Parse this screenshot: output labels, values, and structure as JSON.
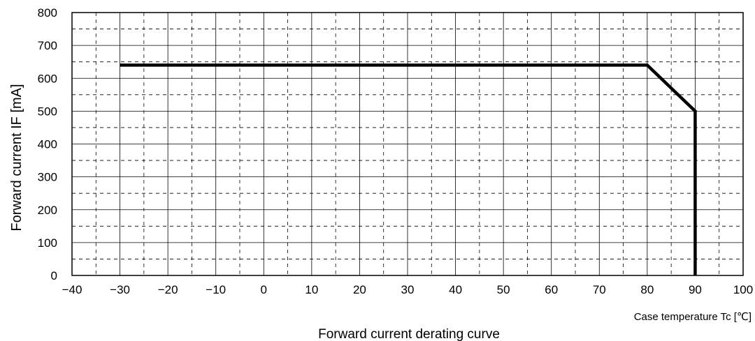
{
  "chart_data": {
    "type": "line",
    "title": "",
    "caption": "Forward current derating curve",
    "xlabel": "Case temperature  Tc [℃]",
    "ylabel": "Forward current  IF [mA]",
    "xlim": [
      -40,
      100
    ],
    "ylim": [
      0,
      800
    ],
    "x_ticks": [
      -40,
      -30,
      -20,
      -10,
      0,
      10,
      20,
      30,
      40,
      50,
      60,
      70,
      80,
      90,
      100
    ],
    "y_ticks": [
      0,
      100,
      200,
      300,
      400,
      500,
      600,
      700,
      800
    ],
    "x_tick_labels": [
      "−40",
      "−30",
      "−20",
      "−10",
      "0",
      "10",
      "20",
      "30",
      "40",
      "50",
      "60",
      "70",
      "80",
      "90",
      "100"
    ],
    "y_tick_labels": [
      "0",
      "100",
      "200",
      "300",
      "400",
      "500",
      "600",
      "700",
      "800"
    ],
    "grid": {
      "major": true,
      "minor_dashed": true,
      "x_minor_step": 5,
      "y_minor_step": 50
    },
    "legend": "none",
    "series": [
      {
        "color": "#000000",
        "x": [
          -30,
          80,
          90,
          90
        ],
        "y": [
          640,
          640,
          500,
          0
        ]
      }
    ]
  }
}
